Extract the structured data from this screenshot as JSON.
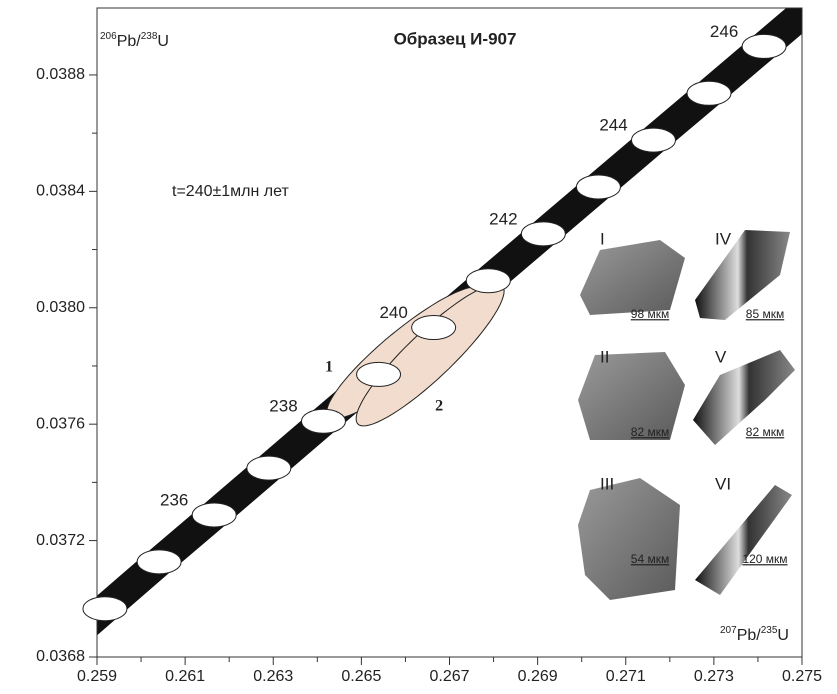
{
  "chart_data": {
    "type": "concordia",
    "title": "Образец И-907",
    "y_label_parts": [
      "206",
      "Pb/",
      "238",
      "U"
    ],
    "x_label_parts": [
      "207",
      "Pb/",
      "235",
      "U"
    ],
    "annotation": "t=240±1млн лет",
    "xlim": [
      0.259,
      0.275
    ],
    "ylim": [
      0.0368,
      0.03903
    ],
    "xticks": [
      0.259,
      0.261,
      0.263,
      0.265,
      0.267,
      0.269,
      0.271,
      0.273,
      0.275
    ],
    "x_minor_ticks": [
      0.26,
      0.262,
      0.264,
      0.266,
      0.268,
      0.27,
      0.272,
      0.274
    ],
    "yticks": [
      0.0368,
      0.0372,
      0.0376,
      {
        "value": 0.038,
        "label": "0.0380"
      },
      0.0384,
      0.0388
    ],
    "y_minor_ticks": [
      0.037,
      0.0374,
      0.0378,
      0.0382,
      0.0386
    ],
    "concordia": {
      "ages": [
        null,
        null,
        236,
        null,
        238,
        null,
        240,
        null,
        242,
        null,
        244,
        null,
        246
      ],
      "x": [
        0.25918,
        0.26041,
        0.26166,
        0.2629,
        0.26414,
        0.26539,
        0.26664,
        0.26788,
        0.26913,
        0.27038,
        0.27163,
        0.27289,
        0.27414
      ],
      "y": [
        0.036966,
        0.037127,
        0.037288,
        0.037449,
        0.03761,
        0.037771,
        0.037932,
        0.038093,
        0.038254,
        0.038415,
        0.038576,
        0.038737,
        0.038898
      ]
    },
    "ellipses": [
      {
        "label": "1",
        "x": 0.26599,
        "y": 0.037845,
        "x_err": 0.00178,
        "y_err": 0.000227,
        "rho": 0.9,
        "color": "#f1dccd"
      },
      {
        "label": "2",
        "x": 0.26656,
        "y": 0.037838,
        "x_err": 0.00168,
        "y_err": 0.000244,
        "rho": 0.9,
        "color": "#f1dccd"
      }
    ],
    "insets": [
      {
        "label": "I",
        "scale": "98 мкм"
      },
      {
        "label": "IV",
        "scale": "85 мкм"
      },
      {
        "label": "II",
        "scale": "82 мкм"
      },
      {
        "label": "V",
        "scale": "82 мкм"
      },
      {
        "label": "III",
        "scale": "54 мкм"
      },
      {
        "label": "VI",
        "scale": "120 мкм"
      }
    ]
  }
}
